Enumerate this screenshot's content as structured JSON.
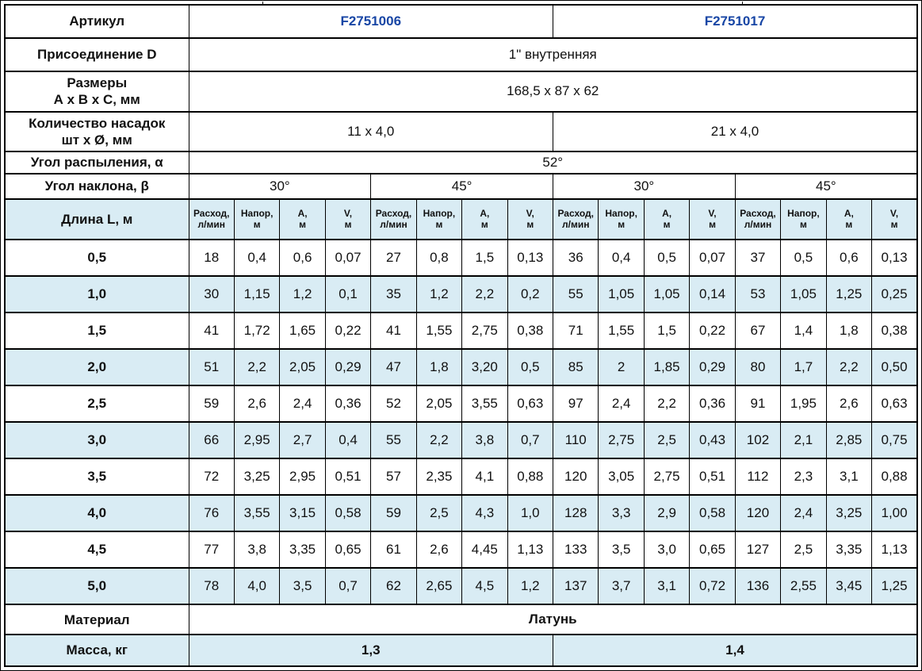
{
  "colors": {
    "article_blue": "#1846a5",
    "stripe_blue": "#d9ecf4",
    "border": "#000000"
  },
  "spec": {
    "article": {
      "label": "Артикул",
      "col1": "F2751006",
      "col2": "F2751017"
    },
    "connection": {
      "label": "Присоединение D",
      "value": "1\" внутренняя"
    },
    "dimensions": {
      "label_line1": "Размеры",
      "label_line2": "А х В х С, мм",
      "value": "168,5 x 87 x 62"
    },
    "nozzles": {
      "label_line1": "Количество насадок",
      "label_line2": "шт х Ø, мм",
      "col1": "11 x 4,0",
      "col2": "21 x 4,0"
    },
    "spray_angle": {
      "label": "Угол распыления, α",
      "value": "52°"
    },
    "tilt_angle": {
      "label": "Угол наклона, β",
      "groups": [
        "30°",
        "45°",
        "30°",
        "45°"
      ]
    },
    "material": {
      "label": "Материал",
      "value": "Латунь"
    },
    "mass": {
      "label": "Масса, кг",
      "col1": "1,3",
      "col2": "1,4"
    }
  },
  "measurements": {
    "length_label": "Длина L, м",
    "subheaders": [
      [
        "Расход,",
        "л/мин"
      ],
      [
        "Напор,",
        "м"
      ],
      [
        "А,",
        "м"
      ],
      [
        "V,",
        "м"
      ]
    ],
    "rows": [
      {
        "length": "0,5",
        "values": [
          "18",
          "0,4",
          "0,6",
          "0,07",
          "27",
          "0,8",
          "1,5",
          "0,13",
          "36",
          "0,4",
          "0,5",
          "0,07",
          "37",
          "0,5",
          "0,6",
          "0,13"
        ]
      },
      {
        "length": "1,0",
        "values": [
          "30",
          "1,15",
          "1,2",
          "0,1",
          "35",
          "1,2",
          "2,2",
          "0,2",
          "55",
          "1,05",
          "1,05",
          "0,14",
          "53",
          "1,05",
          "1,25",
          "0,25"
        ]
      },
      {
        "length": "1,5",
        "values": [
          "41",
          "1,72",
          "1,65",
          "0,22",
          "41",
          "1,55",
          "2,75",
          "0,38",
          "71",
          "1,55",
          "1,5",
          "0,22",
          "67",
          "1,4",
          "1,8",
          "0,38"
        ]
      },
      {
        "length": "2,0",
        "values": [
          "51",
          "2,2",
          "2,05",
          "0,29",
          "47",
          "1,8",
          "3,20",
          "0,5",
          "85",
          "2",
          "1,85",
          "0,29",
          "80",
          "1,7",
          "2,2",
          "0,50"
        ]
      },
      {
        "length": "2,5",
        "values": [
          "59",
          "2,6",
          "2,4",
          "0,36",
          "52",
          "2,05",
          "3,55",
          "0,63",
          "97",
          "2,4",
          "2,2",
          "0,36",
          "91",
          "1,95",
          "2,6",
          "0,63"
        ]
      },
      {
        "length": "3,0",
        "values": [
          "66",
          "2,95",
          "2,7",
          "0,4",
          "55",
          "2,2",
          "3,8",
          "0,7",
          "110",
          "2,75",
          "2,5",
          "0,43",
          "102",
          "2,1",
          "2,85",
          "0,75"
        ]
      },
      {
        "length": "3,5",
        "values": [
          "72",
          "3,25",
          "2,95",
          "0,51",
          "57",
          "2,35",
          "4,1",
          "0,88",
          "120",
          "3,05",
          "2,75",
          "0,51",
          "112",
          "2,3",
          "3,1",
          "0,88"
        ]
      },
      {
        "length": "4,0",
        "values": [
          "76",
          "3,55",
          "3,15",
          "0,58",
          "59",
          "2,5",
          "4,3",
          "1,0",
          "128",
          "3,3",
          "2,9",
          "0,58",
          "120",
          "2,4",
          "3,25",
          "1,00"
        ]
      },
      {
        "length": "4,5",
        "values": [
          "77",
          "3,8",
          "3,35",
          "0,65",
          "61",
          "2,6",
          "4,45",
          "1,13",
          "133",
          "3,5",
          "3,0",
          "0,65",
          "127",
          "2,5",
          "3,35",
          "1,13"
        ]
      },
      {
        "length": "5,0",
        "values": [
          "78",
          "4,0",
          "3,5",
          "0,7",
          "62",
          "2,65",
          "4,5",
          "1,2",
          "137",
          "3,7",
          "3,1",
          "0,72",
          "136",
          "2,55",
          "3,45",
          "1,25"
        ]
      }
    ]
  }
}
